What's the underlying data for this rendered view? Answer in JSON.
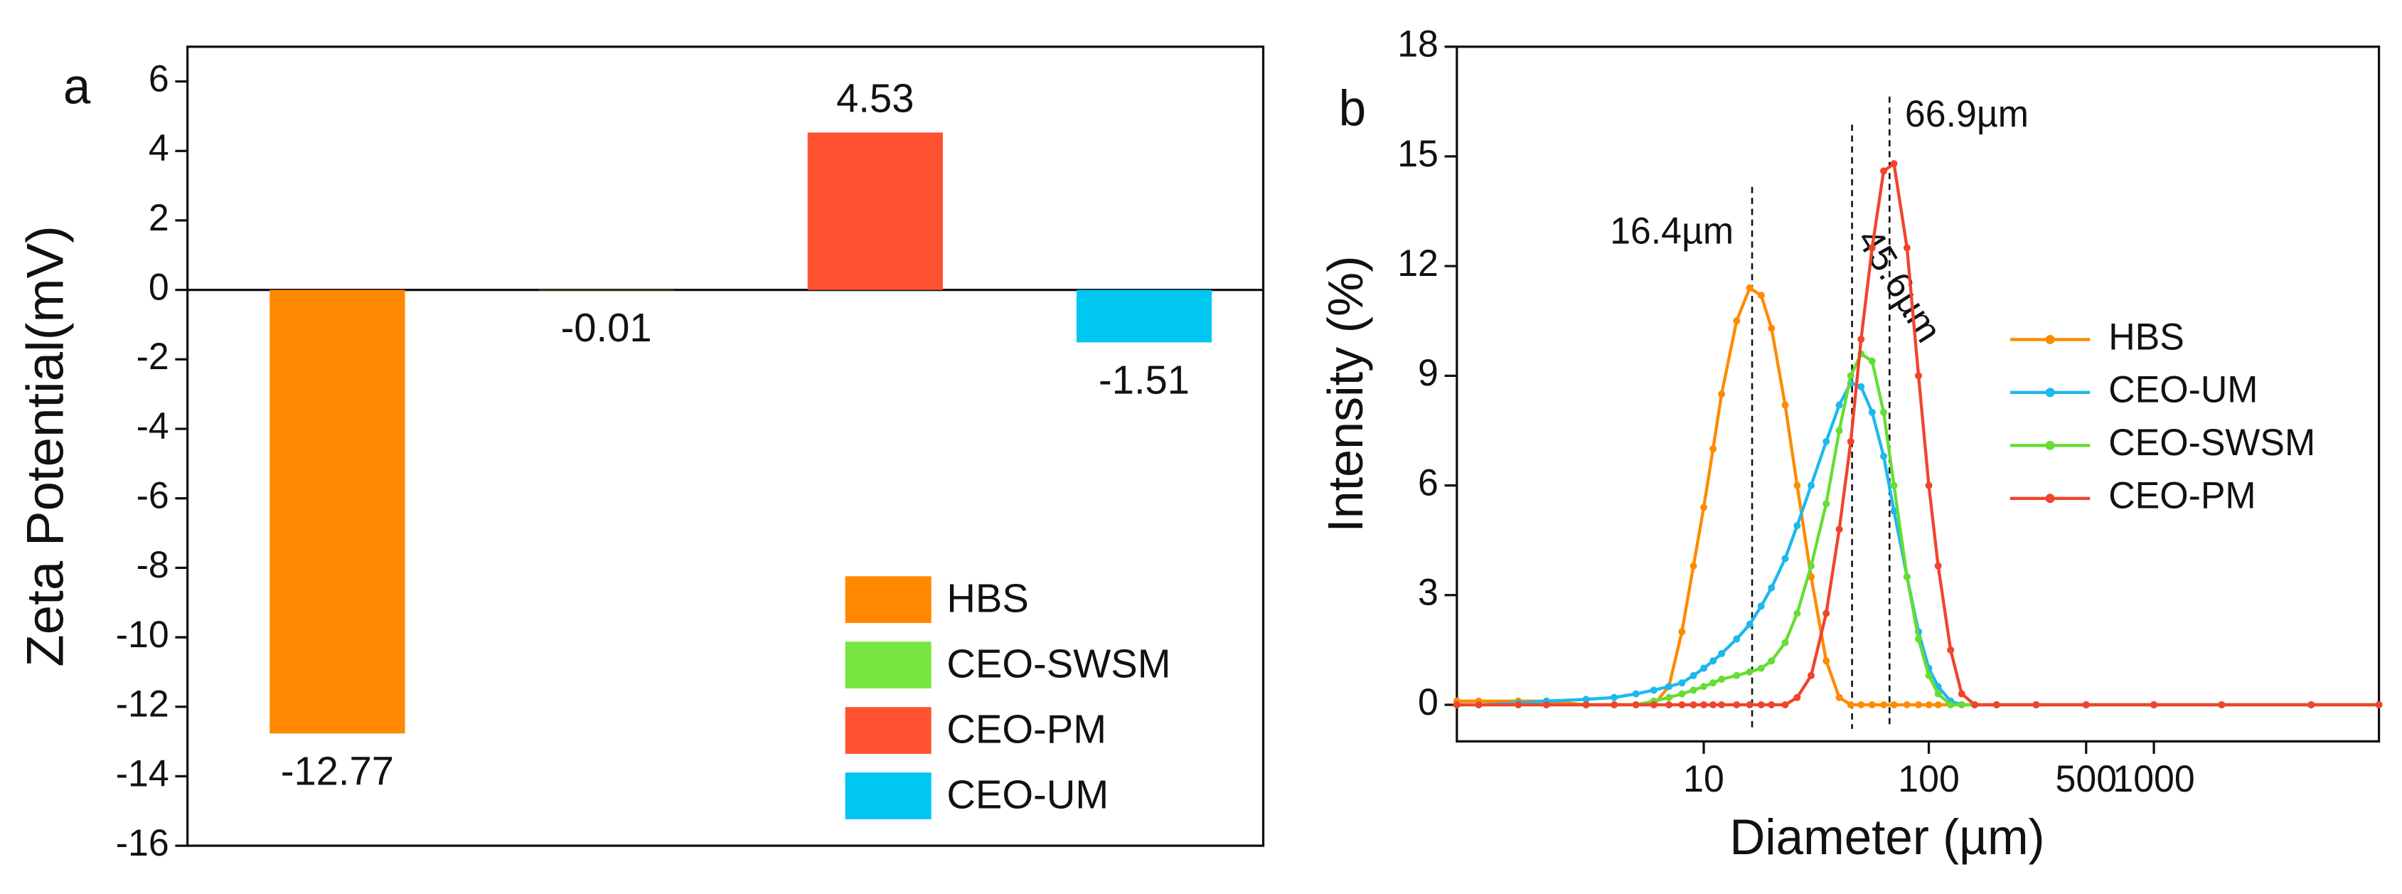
{
  "chart_data": [
    {
      "type": "bar",
      "panel_label": "a",
      "ylabel": "Zeta Potential(mV)",
      "series": [
        {
          "name": "HBS",
          "color": "#ff8800",
          "values": [
            -12.77
          ]
        },
        {
          "name": "CEO-SWSM",
          "color": "#77e640",
          "values": [
            -0.01
          ]
        },
        {
          "name": "CEO-PM",
          "color": "#ff5230",
          "values": [
            4.53
          ]
        },
        {
          "name": "CEO-UM",
          "color": "#00c6f2",
          "values": [
            -1.51
          ]
        }
      ],
      "ylim": [
        -16,
        7
      ],
      "yticks": [
        -16,
        -14,
        -12,
        -10,
        -8,
        -6,
        -4,
        -2,
        0,
        2,
        4,
        6
      ],
      "legend": "lower right"
    },
    {
      "type": "line",
      "panel_label": "b",
      "xlabel": "Diameter (µm)",
      "ylabel": "Intensity (%)",
      "xscale": "log",
      "x": [
        0.8,
        1,
        1.5,
        2,
        3,
        4,
        5,
        6,
        7,
        8,
        9,
        10,
        11,
        12,
        14,
        16,
        18,
        20,
        23,
        26,
        30,
        35,
        40,
        45,
        50,
        56,
        63,
        70,
        80,
        90,
        100,
        110,
        125,
        140,
        160,
        200,
        300,
        500,
        1000,
        2000,
        5000,
        10000
      ],
      "series": [
        {
          "name": "HBS",
          "color": "#ff8a00",
          "values": [
            0.1,
            0.1,
            0.1,
            0.1,
            0,
            0,
            0,
            0,
            0.5,
            2,
            3.8,
            5.4,
            7,
            8.5,
            10.5,
            11.4,
            11.2,
            10.3,
            8.2,
            6,
            3.5,
            1.2,
            0.2,
            0,
            0,
            0,
            0,
            0,
            0,
            0,
            0,
            0,
            0,
            0,
            0,
            0,
            0,
            0,
            0,
            0,
            0,
            0
          ]
        },
        {
          "name": "CEO-UM",
          "color": "#1cb8ee",
          "values": [
            0,
            0,
            0.05,
            0.1,
            0.15,
            0.2,
            0.3,
            0.4,
            0.5,
            0.6,
            0.8,
            1,
            1.2,
            1.4,
            1.8,
            2.2,
            2.7,
            3.2,
            4,
            4.9,
            6,
            7.2,
            8.2,
            8.8,
            8.7,
            8,
            6.8,
            5.3,
            3.5,
            2,
            1,
            0.5,
            0.1,
            0,
            0,
            0,
            0,
            0,
            0,
            0,
            0,
            0
          ]
        },
        {
          "name": "CEO-SWSM",
          "color": "#66dd33",
          "values": [
            0,
            0,
            0,
            0,
            0,
            0,
            0,
            0.1,
            0.2,
            0.3,
            0.4,
            0.5,
            0.6,
            0.7,
            0.8,
            0.9,
            1,
            1.2,
            1.7,
            2.5,
            3.8,
            5.5,
            7.5,
            9,
            9.6,
            9.4,
            8,
            6,
            3.5,
            1.8,
            0.8,
            0.3,
            0,
            0,
            0,
            0,
            0,
            0,
            0,
            0,
            0,
            0
          ]
        },
        {
          "name": "CEO-PM",
          "color": "#f0442c",
          "values": [
            0,
            0,
            0,
            0,
            0,
            0,
            0,
            0,
            0,
            0,
            0,
            0,
            0,
            0,
            0,
            0,
            0,
            0,
            0,
            0.2,
            0.8,
            2.5,
            4.8,
            7.2,
            10,
            12.5,
            14.6,
            14.8,
            12.5,
            9,
            6,
            3.8,
            1.5,
            0.3,
            0,
            0,
            0,
            0,
            0,
            0,
            0,
            0
          ]
        }
      ],
      "annotations": [
        {
          "text": "16.4µm",
          "x": 16.4
        },
        {
          "text": "45.6µm",
          "x": 45.6
        },
        {
          "text": "66.9µm",
          "x": 66.9
        }
      ],
      "xlim": [
        0.8,
        10000
      ],
      "ylim": [
        -1,
        18
      ],
      "xticks": [
        10,
        100,
        500,
        1000
      ],
      "yticks": [
        0,
        3,
        6,
        9,
        12,
        15,
        18
      ],
      "legend": "right"
    }
  ]
}
